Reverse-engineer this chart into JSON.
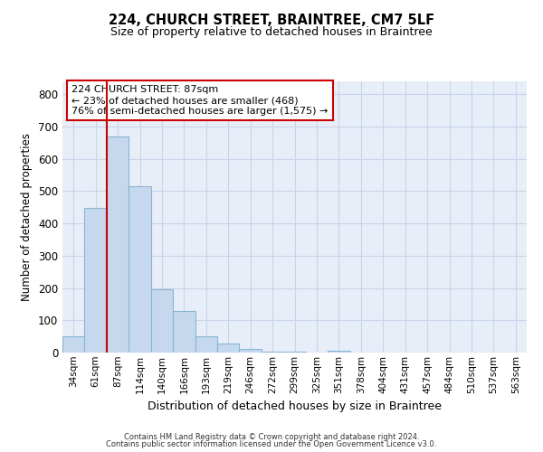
{
  "title1": "224, CHURCH STREET, BRAINTREE, CM7 5LF",
  "title2": "Size of property relative to detached houses in Braintree",
  "xlabel": "Distribution of detached houses by size in Braintree",
  "ylabel": "Number of detached properties",
  "bar_labels": [
    "34sqm",
    "61sqm",
    "87sqm",
    "114sqm",
    "140sqm",
    "166sqm",
    "193sqm",
    "219sqm",
    "246sqm",
    "272sqm",
    "299sqm",
    "325sqm",
    "351sqm",
    "378sqm",
    "404sqm",
    "431sqm",
    "457sqm",
    "484sqm",
    "510sqm",
    "537sqm",
    "563sqm"
  ],
  "bar_values": [
    50,
    448,
    668,
    515,
    197,
    128,
    50,
    27,
    10,
    3,
    2,
    0,
    5,
    0,
    0,
    0,
    0,
    0,
    0,
    0,
    0
  ],
  "bar_color": "#c5d8ed",
  "bar_edge_color": "#8ab4d4",
  "vline_color": "#cc0000",
  "annotation_text": "224 CHURCH STREET: 87sqm\n← 23% of detached houses are smaller (468)\n76% of semi-detached houses are larger (1,575) →",
  "annotation_box_color": "#ffffff",
  "annotation_box_edge": "#cc0000",
  "ylim": [
    0,
    840
  ],
  "yticks": [
    0,
    100,
    200,
    300,
    400,
    500,
    600,
    700,
    800
  ],
  "grid_color": "#c8d4e8",
  "background_color": "#e8eef8",
  "footer1": "Contains HM Land Registry data © Crown copyright and database right 2024.",
  "footer2": "Contains public sector information licensed under the Open Government Licence v3.0."
}
